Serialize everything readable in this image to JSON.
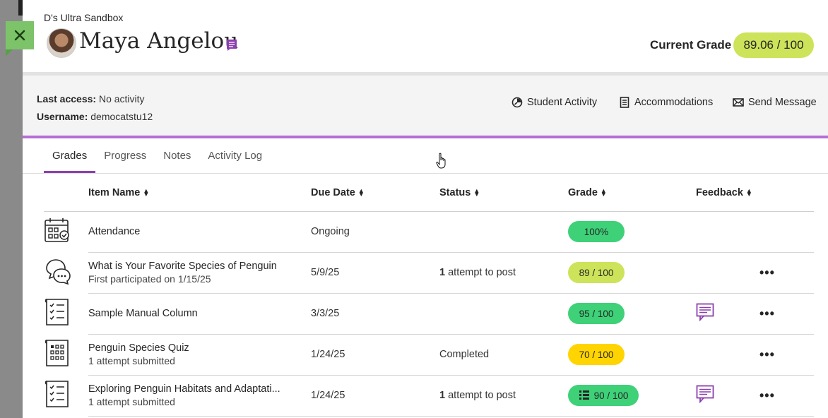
{
  "header": {
    "course_name": "D's Ultra Sandbox",
    "student_name": "Maya Angelou",
    "current_grade_label": "Current Grade",
    "current_grade_value": "89.06 / 100"
  },
  "info": {
    "last_access_label": "Last access:",
    "last_access_value": "No activity",
    "username_label": "Username:",
    "username_value": "democatstu12",
    "actions": {
      "student_activity": "Student Activity",
      "accommodations": "Accommodations",
      "send_message": "Send Message"
    }
  },
  "tabs": [
    "Grades",
    "Progress",
    "Notes",
    "Activity Log"
  ],
  "columns": [
    "Item Name",
    "Due Date",
    "Status",
    "Grade",
    "Feedback"
  ],
  "rows": [
    {
      "icon": "attendance-calendar-icon",
      "title": "Attendance",
      "subtitle": "",
      "due": "Ongoing",
      "status_count": "",
      "status": "",
      "grade": "100%",
      "grade_color": "#3ed178",
      "feedback": false,
      "more": false
    },
    {
      "icon": "discussion-icon",
      "title": "What is Your Favorite Species of Penguin",
      "subtitle": "First participated on 1/15/25",
      "due": "5/9/25",
      "status_count": "1",
      "status": " attempt to post",
      "grade": "89 / 100",
      "grade_color": "#cde35a",
      "feedback": false,
      "more": true
    },
    {
      "icon": "assignment-checklist-icon",
      "title": "Sample Manual Column",
      "subtitle": "",
      "due": "3/3/25",
      "status_count": "",
      "status": "",
      "grade": "95 / 100",
      "grade_color": "#3ed178",
      "feedback": true,
      "more": true
    },
    {
      "icon": "test-grid-icon",
      "title": "Penguin Species Quiz",
      "subtitle": "1 attempt submitted",
      "due": "1/24/25",
      "status_count": "",
      "status": "Completed",
      "grade": "70 / 100",
      "grade_color": "#ffd400",
      "feedback": false,
      "more": true
    },
    {
      "icon": "assignment-checklist-icon",
      "title": "Exploring Penguin Habitats and Adaptati...",
      "subtitle": "1 attempt submitted",
      "due": "1/24/25",
      "status_count": "1",
      "status": " attempt to post",
      "grade": "90 / 100",
      "grade_color": "#3ed178",
      "feedback": true,
      "more": true
    }
  ],
  "more_label": "•••"
}
